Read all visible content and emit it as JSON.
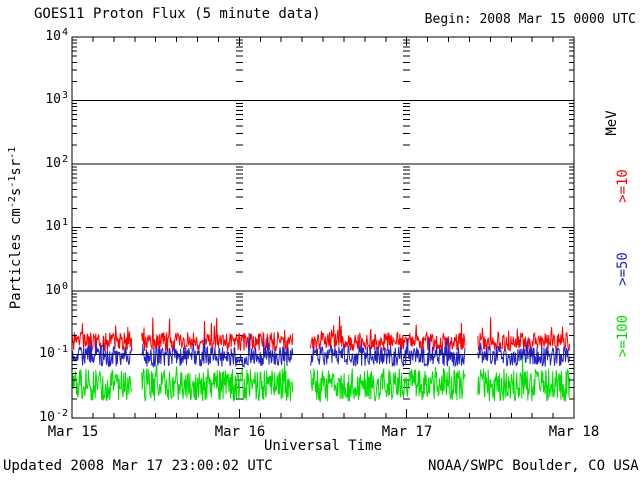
{
  "header": {
    "title": "GOES11 Proton Flux (5 minute data)",
    "begin_label": "Begin: 2008 Mar 15 0000 UTC"
  },
  "footer": {
    "updated": "Updated 2008 Mar 17 23:00:02 UTC",
    "source": "NOAA/SWPC Boulder, CO USA"
  },
  "chart_data": {
    "type": "line",
    "title": "GOES11 Proton Flux (5 minute data)",
    "xlabel": "Universal Time",
    "ylabel_plain": "Particles cm-2 s-1 sr-1",
    "ylabel_segments": [
      {
        "t": "Particles  cm",
        "sup": false
      },
      {
        "t": "-2",
        "sup": true
      },
      {
        "t": "s",
        "sup": false
      },
      {
        "t": "-1",
        "sup": true
      },
      {
        "t": "sr",
        "sup": false
      },
      {
        "t": "-1",
        "sup": true
      }
    ],
    "yscale": "log",
    "ylim_log10": [
      -2,
      4
    ],
    "ytick_base": "10",
    "ytick_exponents": [
      4,
      3,
      2,
      1,
      0,
      -1,
      -2
    ],
    "dashed_gridline_at_flux": 10,
    "x_range_hours": [
      0,
      72
    ],
    "x_major_tick_hours": 24,
    "x_minor_tick_hours": 3,
    "xticklabels": [
      "Mar 15",
      "Mar 16",
      "Mar 17",
      "Mar 18"
    ],
    "data_end_hours": 71.4,
    "gaps_hours": [
      [
        8.6,
        10.0
      ],
      [
        31.7,
        34.2
      ],
      [
        56.4,
        58.2
      ]
    ],
    "right_axis_unit": "MeV",
    "right_axis_labels": [
      {
        "text": "MeV",
        "color": "#000000"
      },
      {
        "text": ">=10",
        "color": "#FF0000"
      },
      {
        "text": ">=50",
        "color": "#2222CC"
      },
      {
        "text": ">=100",
        "color": "#00DD00"
      }
    ],
    "series": [
      {
        "name": ">=10 MeV",
        "color": "#FF0000",
        "approx_mean_flux": 0.16,
        "approx_flux_range": [
          0.09,
          0.45
        ],
        "base_log10": -0.8,
        "noise_log10": 0.15,
        "spike_prob": 0.07,
        "spike_amp_log10": 0.33,
        "clamp_log10": [
          -1.02,
          -0.33
        ]
      },
      {
        "name": ">=50 MeV",
        "color": "#2222CC",
        "approx_mean_flux": 0.095,
        "approx_flux_range": [
          0.04,
          0.25
        ],
        "base_log10": -1.03,
        "noise_log10": 0.16,
        "spike_prob": 0.05,
        "spike_amp_log10": 0.3,
        "clamp_log10": [
          -1.4,
          -0.6
        ]
      },
      {
        "name": ">=100 MeV",
        "color": "#00DD00",
        "approx_mean_flux": 0.033,
        "approx_flux_range": [
          0.014,
          0.09
        ],
        "base_log10": -1.48,
        "noise_log10": 0.26,
        "spike_prob": 0.05,
        "spike_amp_log10": 0.28,
        "clamp_log10": [
          -1.87,
          -1.02
        ]
      }
    ],
    "colors": {
      "axis": "#000000",
      "background": "#FFFFFF"
    }
  }
}
